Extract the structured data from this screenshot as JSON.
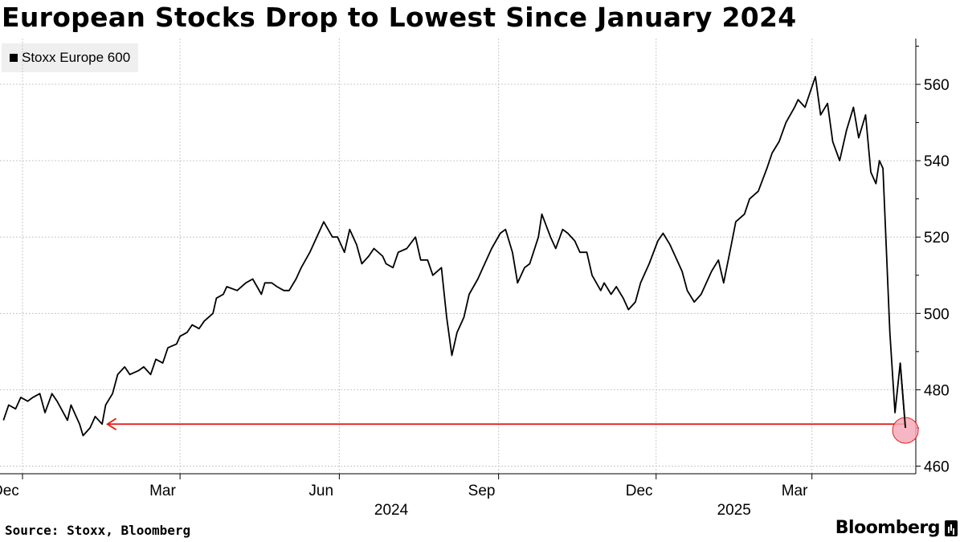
{
  "header": {
    "title": "European Stocks Drop to Lowest Since January 2024"
  },
  "footer": {
    "source": "Source: Stoxx, Bloomberg",
    "brand": "Bloomberg"
  },
  "colors": {
    "line": "#000000",
    "arrow": "#e4211c",
    "marker_fill": "#f5a9b8",
    "marker_stroke": "#e4211c",
    "grid": "#c8c8c8"
  },
  "chart_data": {
    "type": "line",
    "title": "European Stocks Drop to Lowest Since January 2024",
    "series": [
      {
        "name": "Stoxx Europe 600",
        "points": [
          [
            "2023-11-20",
            472
          ],
          [
            "2023-11-23",
            476
          ],
          [
            "2023-11-27",
            475
          ],
          [
            "2023-11-30",
            478
          ],
          [
            "2023-12-04",
            477
          ],
          [
            "2023-12-07",
            478
          ],
          [
            "2023-12-11",
            479
          ],
          [
            "2023-12-14",
            474
          ],
          [
            "2023-12-18",
            479
          ],
          [
            "2023-12-21",
            477
          ],
          [
            "2023-12-27",
            472
          ],
          [
            "2023-12-29",
            476
          ],
          [
            "2024-01-03",
            471
          ],
          [
            "2024-01-05",
            468
          ],
          [
            "2024-01-09",
            470
          ],
          [
            "2024-01-12",
            473
          ],
          [
            "2024-01-16",
            471
          ],
          [
            "2024-01-18",
            476
          ],
          [
            "2024-01-22",
            479
          ],
          [
            "2024-01-25",
            484
          ],
          [
            "2024-01-29",
            486
          ],
          [
            "2024-02-01",
            484
          ],
          [
            "2024-02-06",
            485
          ],
          [
            "2024-02-09",
            486
          ],
          [
            "2024-02-13",
            484
          ],
          [
            "2024-02-16",
            488
          ],
          [
            "2024-02-20",
            487
          ],
          [
            "2024-02-23",
            491
          ],
          [
            "2024-02-28",
            492
          ],
          [
            "2024-03-01",
            494
          ],
          [
            "2024-03-05",
            495
          ],
          [
            "2024-03-08",
            497
          ],
          [
            "2024-03-12",
            496
          ],
          [
            "2024-03-15",
            498
          ],
          [
            "2024-03-20",
            500
          ],
          [
            "2024-03-22",
            504
          ],
          [
            "2024-03-26",
            505
          ],
          [
            "2024-03-28",
            507
          ],
          [
            "2024-04-03",
            506
          ],
          [
            "2024-04-08",
            508
          ],
          [
            "2024-04-12",
            509
          ],
          [
            "2024-04-17",
            505
          ],
          [
            "2024-04-19",
            508
          ],
          [
            "2024-04-23",
            508
          ],
          [
            "2024-04-26",
            507
          ],
          [
            "2024-04-30",
            506
          ],
          [
            "2024-05-03",
            506
          ],
          [
            "2024-05-07",
            509
          ],
          [
            "2024-05-10",
            512
          ],
          [
            "2024-05-15",
            516
          ],
          [
            "2024-05-20",
            521
          ],
          [
            "2024-05-23",
            524
          ],
          [
            "2024-05-28",
            520
          ],
          [
            "2024-05-31",
            520
          ],
          [
            "2024-06-04",
            516
          ],
          [
            "2024-06-07",
            522
          ],
          [
            "2024-06-11",
            518
          ],
          [
            "2024-06-14",
            513
          ],
          [
            "2024-06-18",
            515
          ],
          [
            "2024-06-21",
            517
          ],
          [
            "2024-06-26",
            515
          ],
          [
            "2024-06-28",
            513
          ],
          [
            "2024-07-02",
            512
          ],
          [
            "2024-07-05",
            516
          ],
          [
            "2024-07-10",
            517
          ],
          [
            "2024-07-15",
            520
          ],
          [
            "2024-07-18",
            514
          ],
          [
            "2024-07-22",
            514
          ],
          [
            "2024-07-25",
            510
          ],
          [
            "2024-07-30",
            512
          ],
          [
            "2024-08-02",
            499
          ],
          [
            "2024-08-05",
            489
          ],
          [
            "2024-08-08",
            495
          ],
          [
            "2024-08-12",
            499
          ],
          [
            "2024-08-15",
            505
          ],
          [
            "2024-08-20",
            509
          ],
          [
            "2024-08-23",
            512
          ],
          [
            "2024-08-28",
            517
          ],
          [
            "2024-09-02",
            521
          ],
          [
            "2024-09-05",
            522
          ],
          [
            "2024-09-09",
            516
          ],
          [
            "2024-09-12",
            508
          ],
          [
            "2024-09-16",
            512
          ],
          [
            "2024-09-19",
            513
          ],
          [
            "2024-09-24",
            520
          ],
          [
            "2024-09-26",
            526
          ],
          [
            "2024-10-01",
            520
          ],
          [
            "2024-10-04",
            517
          ],
          [
            "2024-10-08",
            522
          ],
          [
            "2024-10-11",
            521
          ],
          [
            "2024-10-15",
            519
          ],
          [
            "2024-10-18",
            516
          ],
          [
            "2024-10-22",
            516
          ],
          [
            "2024-10-25",
            510
          ],
          [
            "2024-10-30",
            506
          ],
          [
            "2024-11-01",
            508
          ],
          [
            "2024-11-05",
            505
          ],
          [
            "2024-11-08",
            507
          ],
          [
            "2024-11-12",
            504
          ],
          [
            "2024-11-15",
            501
          ],
          [
            "2024-11-19",
            503
          ],
          [
            "2024-11-22",
            508
          ],
          [
            "2024-11-27",
            513
          ],
          [
            "2024-12-02",
            519
          ],
          [
            "2024-12-05",
            521
          ],
          [
            "2024-12-09",
            518
          ],
          [
            "2024-12-12",
            515
          ],
          [
            "2024-12-16",
            511
          ],
          [
            "2024-12-19",
            506
          ],
          [
            "2024-12-23",
            503
          ],
          [
            "2024-12-27",
            505
          ],
          [
            "2025-01-02",
            511
          ],
          [
            "2025-01-06",
            514
          ],
          [
            "2025-01-09",
            508
          ],
          [
            "2025-01-13",
            517
          ],
          [
            "2025-01-16",
            524
          ],
          [
            "2025-01-21",
            526
          ],
          [
            "2025-01-24",
            530
          ],
          [
            "2025-01-29",
            532
          ],
          [
            "2025-02-03",
            538
          ],
          [
            "2025-02-06",
            542
          ],
          [
            "2025-02-10",
            545
          ],
          [
            "2025-02-14",
            550
          ],
          [
            "2025-02-19",
            554
          ],
          [
            "2025-02-21",
            556
          ],
          [
            "2025-02-25",
            554
          ],
          [
            "2025-02-28",
            558
          ],
          [
            "2025-03-03",
            562
          ],
          [
            "2025-03-06",
            552
          ],
          [
            "2025-03-10",
            555
          ],
          [
            "2025-03-13",
            545
          ],
          [
            "2025-03-17",
            540
          ],
          [
            "2025-03-21",
            548
          ],
          [
            "2025-03-25",
            554
          ],
          [
            "2025-03-28",
            546
          ],
          [
            "2025-04-01",
            552
          ],
          [
            "2025-04-04",
            537
          ],
          [
            "2025-04-07",
            534
          ],
          [
            "2025-04-09",
            540
          ],
          [
            "2025-04-11",
            538
          ],
          [
            "2025-04-15",
            495
          ],
          [
            "2025-04-18",
            474
          ],
          [
            "2025-04-21",
            487
          ],
          [
            "2025-04-24",
            470
          ]
        ]
      }
    ],
    "legend": [
      {
        "label": "Stoxx Europe 600"
      }
    ],
    "x_ticks": [
      {
        "date": "2023-12-01",
        "label": "Dec"
      },
      {
        "date": "2024-03-01",
        "label": "Mar"
      },
      {
        "date": "2024-06-01",
        "label": "Jun"
      },
      {
        "date": "2024-09-01",
        "label": "Sep"
      },
      {
        "date": "2024-12-01",
        "label": "Dec"
      },
      {
        "date": "2025-03-01",
        "label": "Mar"
      }
    ],
    "year_labels": [
      {
        "date": "2024-07-01",
        "label": "2024"
      },
      {
        "date": "2025-01-15",
        "label": "2025"
      }
    ],
    "y_ticks": [
      460,
      480,
      500,
      520,
      540,
      560
    ],
    "xlim": [
      "2023-11-18",
      "2025-04-30"
    ],
    "ylim": [
      458,
      572
    ],
    "grid": true,
    "annotation": {
      "type": "arrow",
      "from_date": "2025-04-24",
      "to_date": "2024-01-19",
      "value": 471
    },
    "highlight": {
      "date": "2025-04-24",
      "value": 470
    }
  }
}
